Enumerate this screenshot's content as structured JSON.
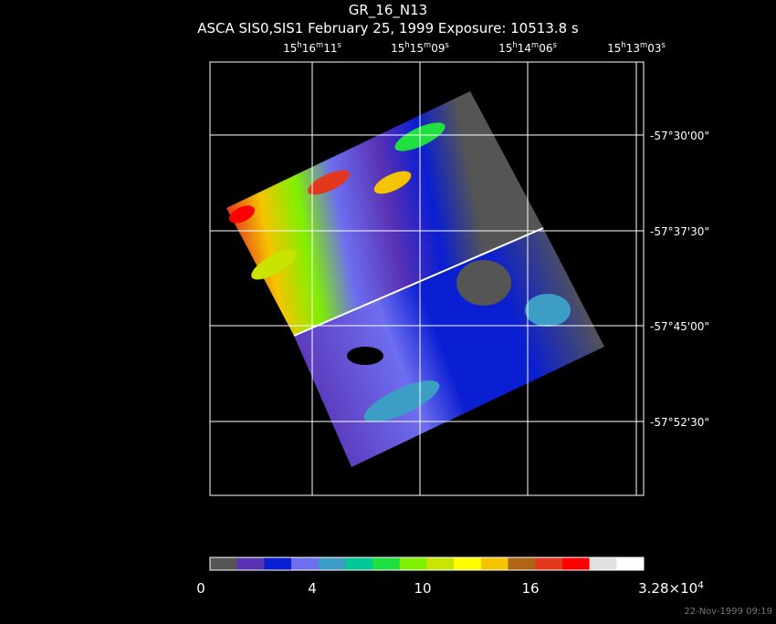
{
  "header": {
    "title": "GR_16_N13",
    "subtitle": "ASCA SIS0,SIS1 February 25, 1999 Exposure: 10513.8 s"
  },
  "ra_labels": [
    [
      "15",
      "h",
      "16",
      "m",
      "11",
      "s"
    ],
    [
      "15",
      "h",
      "15",
      "m",
      "09",
      "s"
    ],
    [
      "15",
      "h",
      "14",
      "m",
      "06",
      "s"
    ],
    [
      "15",
      "h",
      "13",
      "m",
      "03",
      "s"
    ]
  ],
  "dec_labels": [
    "-57°30'00\"",
    "-57°37'30\"",
    "-57°45'00\"",
    "-57°52'30\""
  ],
  "colorbar": {
    "colors": [
      "#555555",
      "#5a32b4",
      "#0a1ed2",
      "#6e6ef0",
      "#3c9ec4",
      "#00c896",
      "#20e040",
      "#80f000",
      "#c8e400",
      "#ffff00",
      "#f5c400",
      "#b06414",
      "#e2381e",
      "#ff0000",
      "#e0e0e0",
      "#ffffff"
    ],
    "labels": [
      [
        "0"
      ],
      [
        "4"
      ],
      [
        "10"
      ],
      [
        "16"
      ],
      [
        "3.28×10",
        "4"
      ]
    ]
  },
  "footer": {
    "timestamp": "22-Nov-1999 09:19"
  }
}
